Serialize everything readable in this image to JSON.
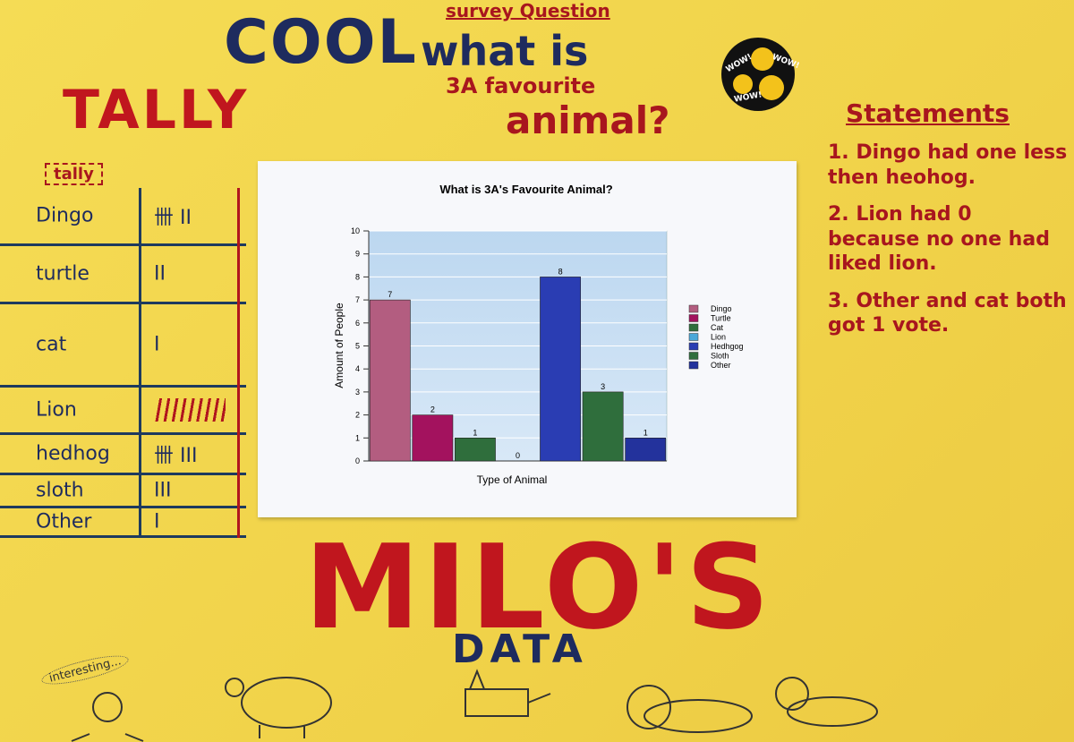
{
  "header": {
    "survey": "survey Question",
    "cool": "COOL",
    "question_line1": "what is",
    "question_line2": "3A favourite",
    "question_line3": "animal?"
  },
  "sticker": [
    "WOW!",
    "WOW!",
    "WOW!"
  ],
  "tally": {
    "title": "TALLY",
    "label": "tally",
    "rows": [
      [
        "Dingo",
        "卌 II"
      ],
      [
        "turtle",
        "II"
      ],
      [
        "cat",
        "I"
      ],
      [
        "Lion"
      ],
      [
        "hedhog",
        "卌 III"
      ],
      [
        "sloth",
        "III"
      ],
      [
        "Other",
        "I"
      ]
    ]
  },
  "statements": {
    "title": "Statements",
    "items": [
      "1. Dingo had one less then heohog.",
      "2. Lion had 0 because no one had liked lion.",
      "3. Other and cat both got 1 vote."
    ]
  },
  "footer": {
    "title": "MILO'S",
    "subtitle": "DATA",
    "doodle": "interesting..."
  },
  "chart_data": {
    "type": "bar",
    "title": "What is 3A's Favourite Animal?",
    "x_label": "Type of Animal",
    "y_label": "Amount of People",
    "categories": [
      "Dingo",
      "Turtle",
      "Cat",
      "Lion",
      "Hedhgog",
      "Sloth",
      "Other"
    ],
    "values": [
      7,
      2,
      1,
      0,
      8,
      3,
      1
    ],
    "colors": [
      "#b35d80",
      "#a3125e",
      "#2f6e3c",
      "#4aa8d8",
      "#2a3db3",
      "#2f6e3c",
      "#23329c"
    ],
    "ylim": [
      0,
      10
    ],
    "yticks": [
      0,
      1,
      2,
      3,
      4,
      5,
      6,
      7,
      8,
      9,
      10
    ],
    "grid": true,
    "legend": "right"
  }
}
